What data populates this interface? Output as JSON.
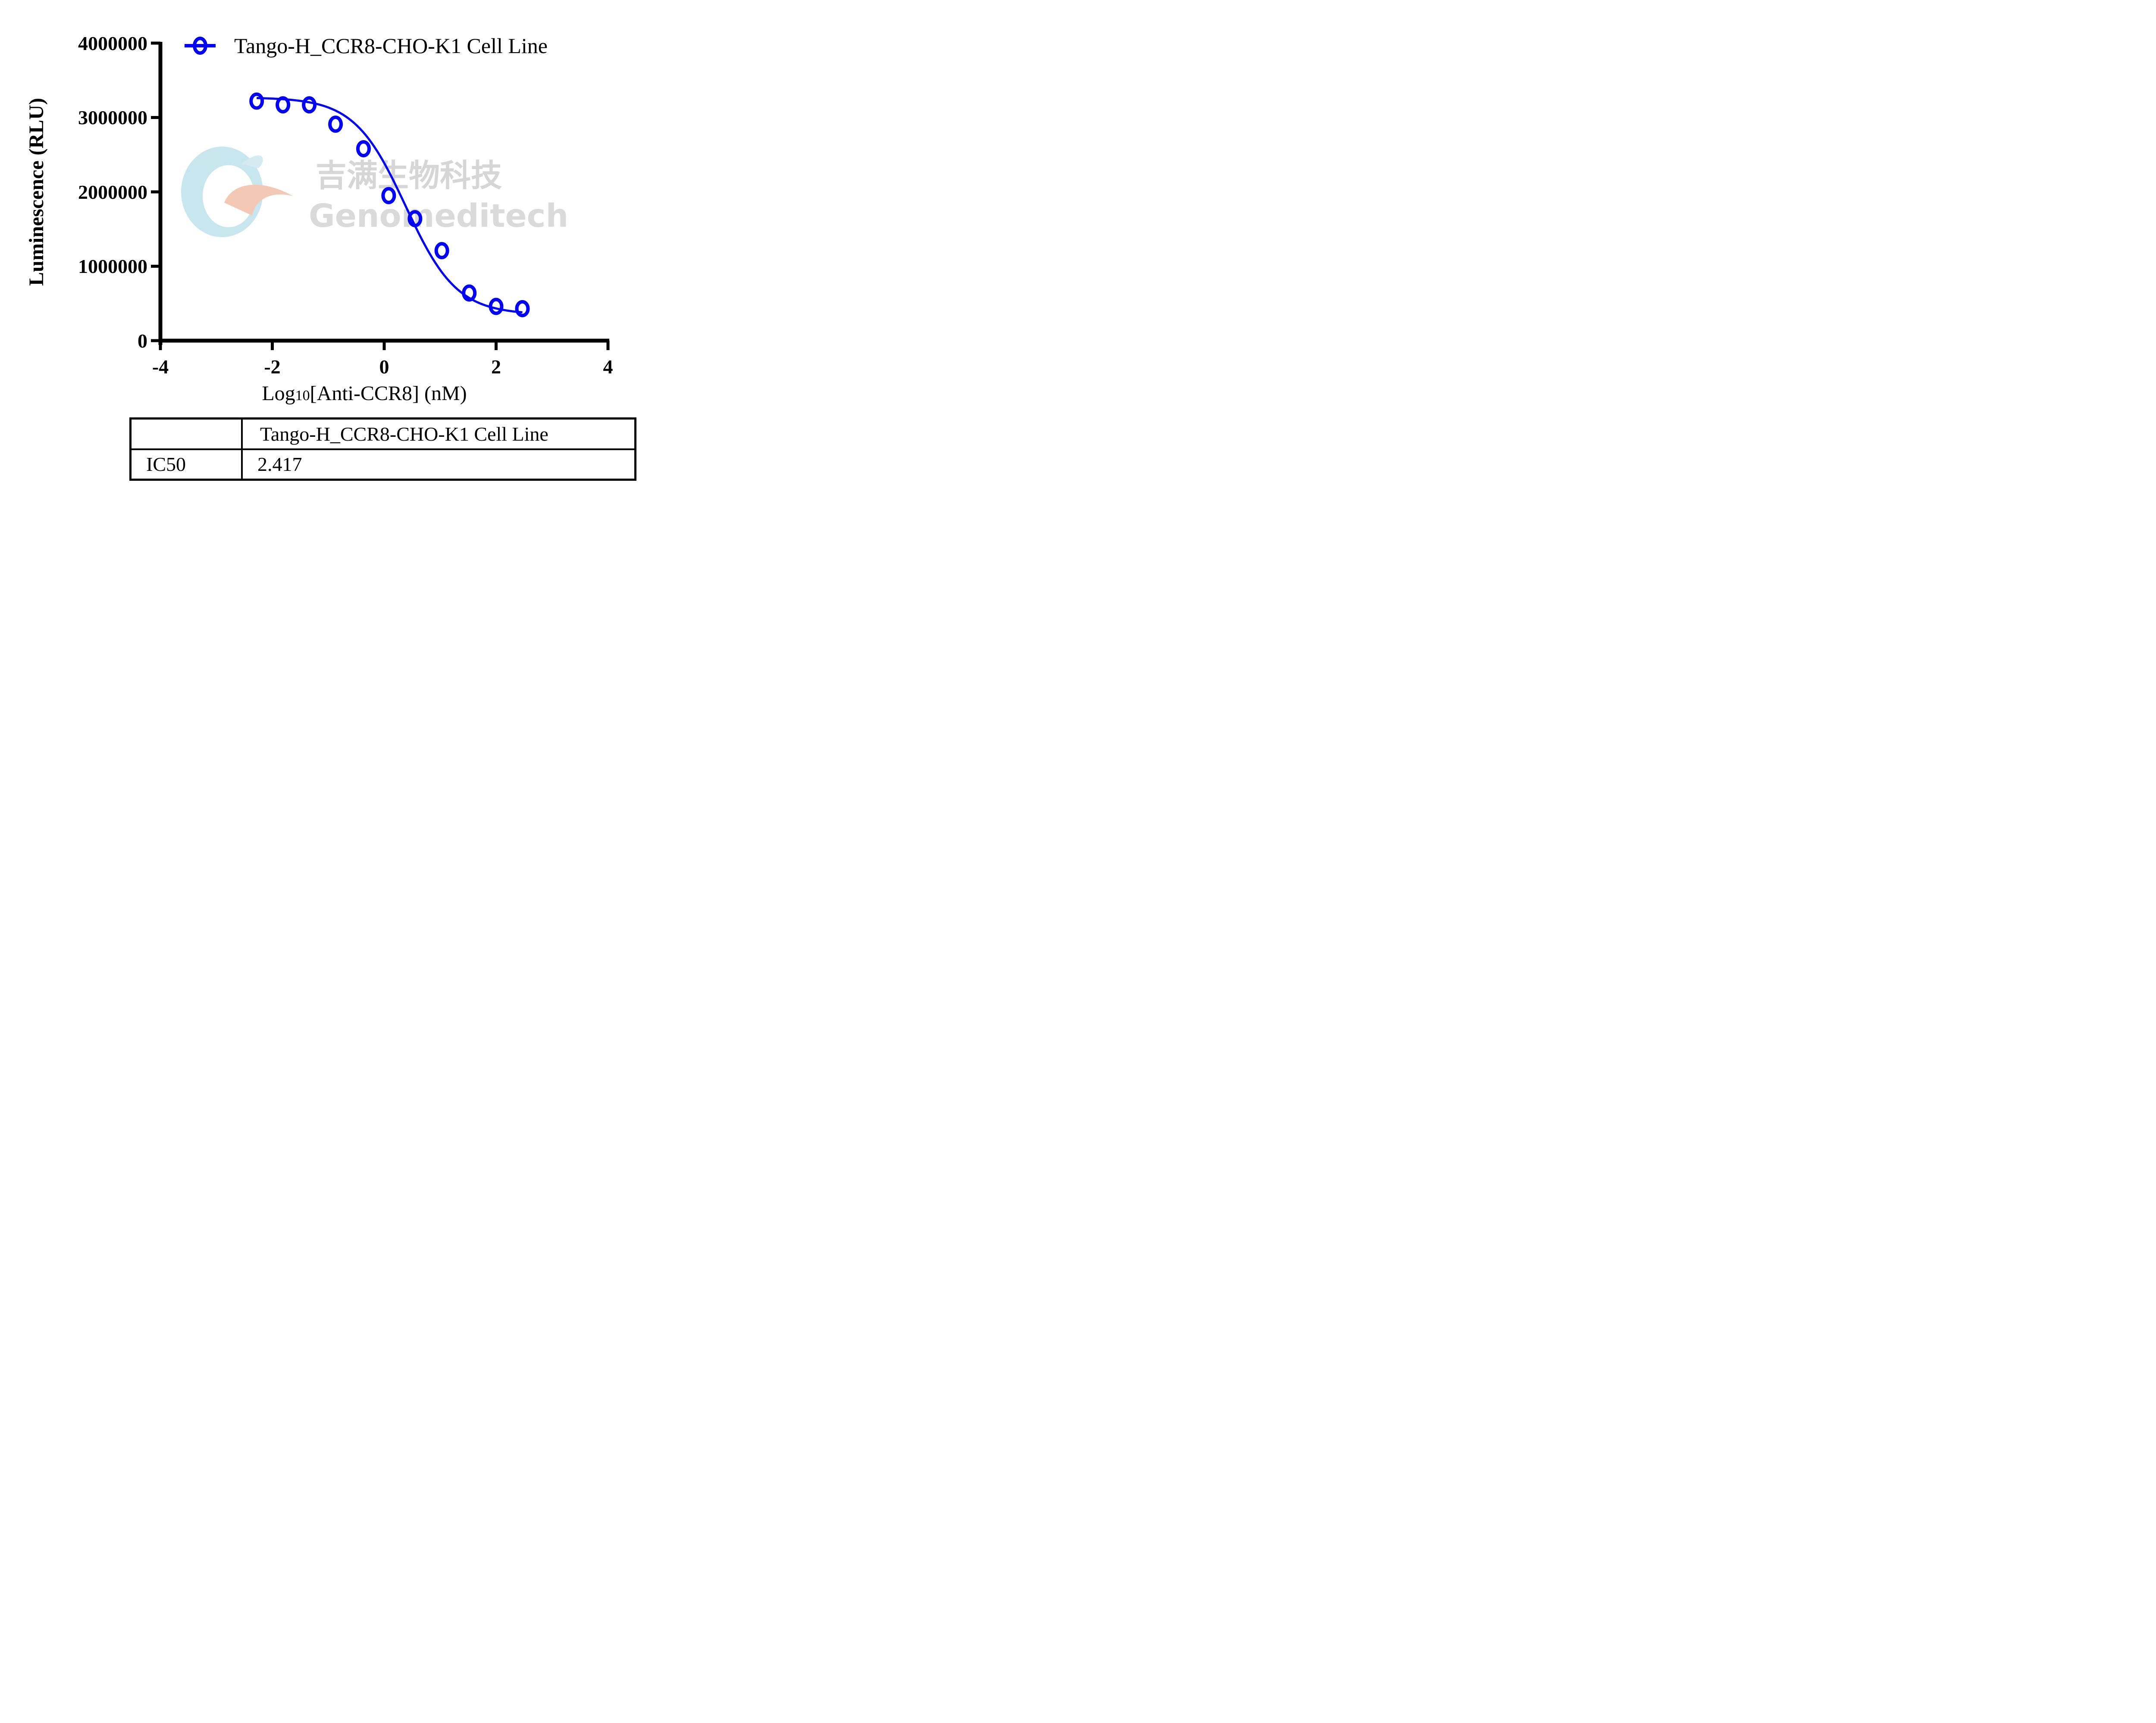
{
  "chart_data": {
    "type": "scatter",
    "title": "",
    "xlabel": "Log10[Anti-CCR8] (nM)",
    "xlabel_parts": {
      "pre": "Log",
      "sub": "10",
      "post": "[Anti-CCR8] (nM)"
    },
    "ylabel": "Luminescence (RLU)",
    "xlim": [
      -4,
      4
    ],
    "ylim": [
      0,
      4000000
    ],
    "x_ticks": [
      -4,
      -2,
      0,
      2,
      4
    ],
    "x_tick_labels": [
      "-4",
      "-2",
      "0",
      "2",
      "4"
    ],
    "y_ticks": [
      0,
      1000000,
      2000000,
      3000000,
      4000000
    ],
    "y_tick_labels": [
      "0",
      "1000000",
      "2000000",
      "3000000",
      "4000000"
    ],
    "grid": false,
    "legend_position": "top",
    "series": [
      {
        "name": "Tango-H_CCR8-CHO-K1 Cell Line",
        "color": "#0000ff",
        "marker": "open-circle",
        "fit": "4PL sigmoidal curve",
        "x": [
          -2.28,
          -1.81,
          -1.34,
          -0.87,
          -0.37,
          0.08,
          0.55,
          1.03,
          1.52,
          2.0,
          2.47
        ],
        "y": [
          3220000,
          3170000,
          3170000,
          2910000,
          2580000,
          1950000,
          1640000,
          1210000,
          640000,
          460000,
          430000
        ]
      }
    ],
    "table": {
      "columns": [
        "",
        "Tango-H_CCR8-CHO-K1 Cell Line"
      ],
      "rows": [
        [
          "IC50",
          "2.417"
        ]
      ]
    }
  },
  "legend": {
    "label": "Tango-H_CCR8-CHO-K1 Cell Line"
  },
  "watermark": {
    "cn": "吉满生物科技",
    "en": "Genomeditech"
  },
  "table": {
    "header": {
      "c1": "",
      "c2": "Tango-H_CCR8-CHO-K1 Cell Line"
    },
    "row1": {
      "c1": "IC50",
      "c2": "2.417"
    }
  }
}
